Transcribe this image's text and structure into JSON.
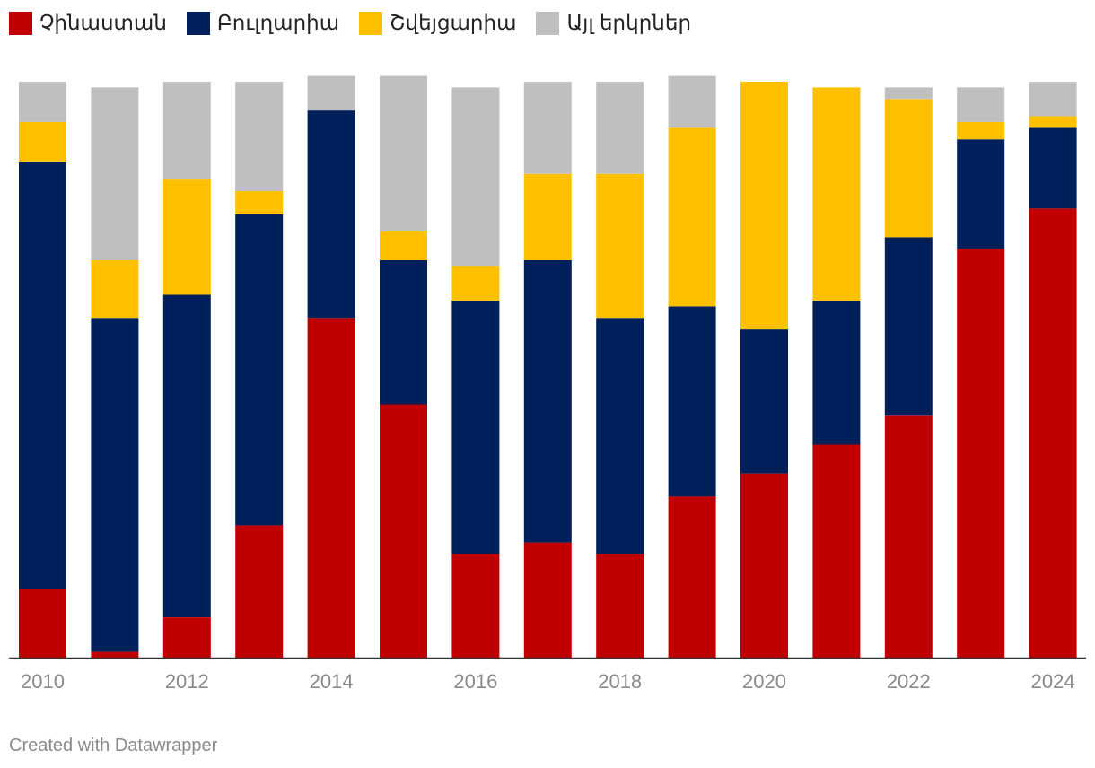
{
  "chart_data": {
    "type": "bar",
    "stacked": true,
    "normalized": true,
    "categories": [
      "2010",
      "2011",
      "2012",
      "2013",
      "2014",
      "2015",
      "2016",
      "2017",
      "2018",
      "2019",
      "2020",
      "2021",
      "2022",
      "2023",
      "2024"
    ],
    "tick_labels": [
      "2010",
      "",
      "2012",
      "",
      "2014",
      "",
      "2016",
      "",
      "2018",
      "",
      "2020",
      "",
      "2022",
      "",
      "2024"
    ],
    "series": [
      {
        "name": "Չինաստան",
        "color": "#c00000",
        "values": [
          12,
          1,
          7,
          23,
          59,
          44,
          18,
          20,
          18,
          28,
          32,
          37,
          42,
          71,
          78
        ]
      },
      {
        "name": "Բուլղարիա",
        "color": "#00205b",
        "values": [
          74,
          58,
          56,
          54,
          36,
          25,
          44,
          49,
          41,
          33,
          25,
          25,
          31,
          19,
          14
        ]
      },
      {
        "name": "Շվեյցարիա",
        "color": "#ffc000",
        "values": [
          7,
          10,
          20,
          4,
          0,
          5,
          6,
          15,
          25,
          31,
          43,
          37,
          24,
          3,
          2
        ]
      },
      {
        "name": "Այլ երկրներ",
        "color": "#bfbfbf",
        "values": [
          7,
          30,
          17,
          19,
          6,
          27,
          31,
          16,
          16,
          9,
          0,
          0,
          2,
          6,
          6
        ]
      }
    ],
    "totals": [
      100,
      99,
      100,
      100,
      101,
      101,
      99,
      100,
      100,
      101,
      100,
      99,
      99,
      99,
      100
    ],
    "legend_position": "top-left",
    "grid": false
  },
  "footer": {
    "credit": "Created with Datawrapper"
  }
}
